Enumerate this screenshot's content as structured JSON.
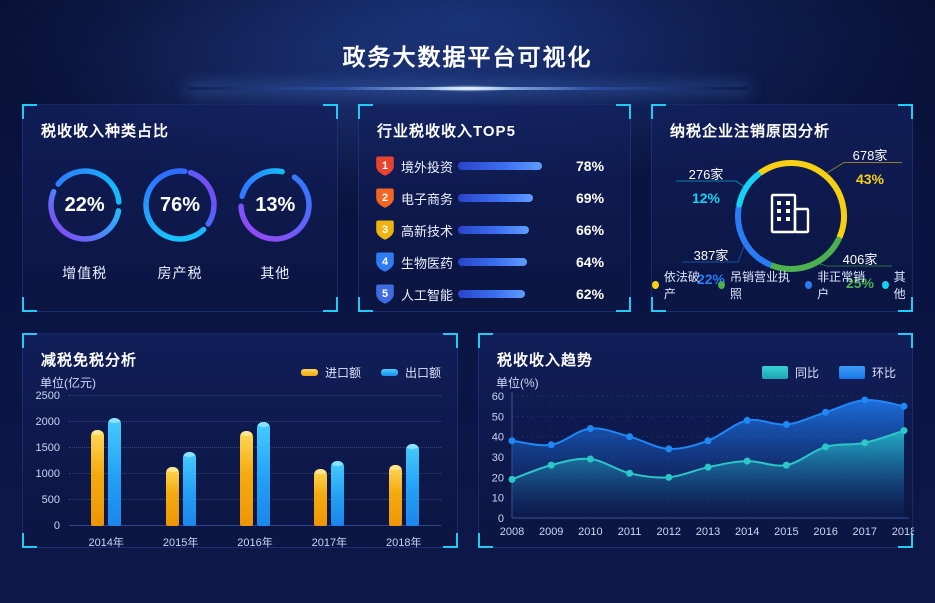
{
  "header": {
    "title": "政务大数据平台可视化"
  },
  "theme": {
    "background": "#0a1440",
    "panel": "#0d1a4f",
    "bracket_accent": "#20cbf5",
    "ring_gradient": [
      "#2e7bff",
      "#15c9ff",
      "#8a3ff0"
    ]
  },
  "chart_data": [
    {
      "id": "tax_type",
      "type": "donut-gauges",
      "title": "税收收入种类占比",
      "gauges": [
        {
          "label": "增值税",
          "value": 22,
          "pct": "22%"
        },
        {
          "label": "房产税",
          "value": 76,
          "pct": "76%"
        },
        {
          "label": "其他",
          "value": 13,
          "pct": "13%"
        }
      ]
    },
    {
      "id": "industry_top5",
      "type": "bar",
      "title": "行业税收收入TOP5",
      "categories": [
        "境外投资",
        "电子商务",
        "高新技术",
        "生物医药",
        "人工智能"
      ],
      "values": [
        78,
        69,
        66,
        64,
        62
      ],
      "items": [
        {
          "rank": "1",
          "label": "境外投资",
          "value": 78,
          "pct": "78%",
          "badge_color": "#e8432d"
        },
        {
          "rank": "2",
          "label": "电子商务",
          "value": 69,
          "pct": "69%",
          "badge_color": "#f26522"
        },
        {
          "rank": "3",
          "label": "高新技术",
          "value": 66,
          "pct": "66%",
          "badge_color": "#efb30f"
        },
        {
          "rank": "4",
          "label": "生物医药",
          "value": 64,
          "pct": "64%",
          "badge_color": "#2e7bf3"
        },
        {
          "rank": "5",
          "label": "人工智能",
          "value": 62,
          "pct": "62%",
          "badge_color": "#3f6ce0"
        }
      ],
      "bar_color": "#3d6ef0"
    },
    {
      "id": "cancellation",
      "type": "pie",
      "title": "纳税企业注销原因分析",
      "slices": [
        {
          "label": "依法破产",
          "count": "678家",
          "pct": "43%",
          "value": 43,
          "color": "#f7d013"
        },
        {
          "label": "吊销营业执照",
          "count": "406家",
          "pct": "25%",
          "value": 25,
          "color": "#4cb04f"
        },
        {
          "label": "非正常销户",
          "count": "387家",
          "pct": "22%",
          "value": 22,
          "color": "#2a7cf5"
        },
        {
          "label": "其他",
          "count": "276家",
          "pct": "12%",
          "value": 12,
          "color": "#16d2f2"
        }
      ],
      "legend_position": "bottom"
    },
    {
      "id": "tax_reduction",
      "type": "bar",
      "title": "减税免税分析",
      "ylabel": "单位(亿元)",
      "categories": [
        "2014年",
        "2015年",
        "2016年",
        "2017年",
        "2018年"
      ],
      "series": [
        {
          "name": "进口额",
          "color": "#f5b521",
          "values": [
            1850,
            1130,
            1820,
            1100,
            1170
          ]
        },
        {
          "name": "出口额",
          "color": "#2fb8f5",
          "values": [
            2080,
            1430,
            2000,
            1250,
            1580
          ]
        }
      ],
      "ylim": [
        0,
        2500
      ],
      "yticks": [
        0,
        500,
        1000,
        1500,
        2000,
        2500
      ],
      "grid": "dotted",
      "legend_position": "top-right"
    },
    {
      "id": "trend",
      "type": "area",
      "title": "税收收入趋势",
      "ylabel": "单位(%)",
      "x": [
        "2008",
        "2009",
        "2010",
        "2011",
        "2012",
        "2013",
        "2014",
        "2015",
        "2016",
        "2017",
        "2018"
      ],
      "series": [
        {
          "name": "同比",
          "color": "#2bc7c9",
          "values": [
            19,
            26,
            29,
            22,
            20,
            25,
            28,
            26,
            35,
            37,
            43
          ]
        },
        {
          "name": "环比",
          "color": "#1e88f5",
          "values": [
            38,
            36,
            44,
            40,
            34,
            38,
            48,
            46,
            52,
            58,
            55
          ]
        }
      ],
      "ylim": [
        0,
        60
      ],
      "yticks": [
        0,
        10,
        20,
        30,
        40,
        50,
        60
      ],
      "grid": "dotted",
      "legend_position": "top-right"
    }
  ]
}
